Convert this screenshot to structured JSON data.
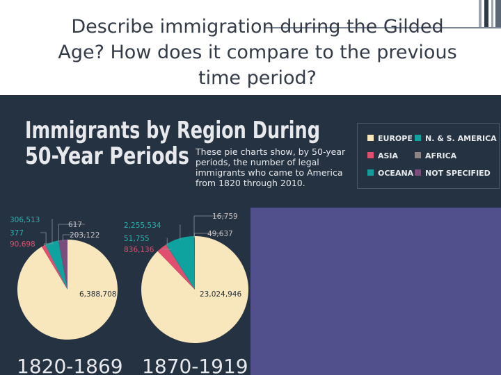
{
  "slide": {
    "title_line1": "Describe immigration during the Gilded",
    "title_line2": "Age? How does it compare to the previous",
    "title_line3": "time period?"
  },
  "colors": {
    "background": "#253241",
    "panel": "#51508c",
    "europe": "#f8e6bd",
    "asia": "#e0506e",
    "oceana": "#139c9a",
    "americas": "#0fa39f",
    "africa": "#8d8486",
    "not_specified": "#7b4d7a"
  },
  "chart_data": {
    "type": "pie",
    "title_line1": "Immigrants by Region During",
    "title_line2": "50-Year Periods",
    "subtitle": [
      "These pie charts show, by 50-year",
      "periods, the number of legal",
      "immigrants who came to America",
      "from 1820 through 2010."
    ],
    "legend": [
      {
        "name": "EUROPE",
        "color": "#f8e6bd"
      },
      {
        "name": "N. & S. AMERICA",
        "color": "#0fa39f"
      },
      {
        "name": "ASIA",
        "color": "#e0506e"
      },
      {
        "name": "AFRICA",
        "color": "#8d8486"
      },
      {
        "name": "OCEANA",
        "color": "#139c9a"
      },
      {
        "name": "NOT SPECIFIED",
        "color": "#7b4d7a"
      }
    ],
    "legend_position": "top-right",
    "pies": [
      {
        "period": "1820-1869",
        "slices": [
          {
            "region": "EUROPE",
            "value": 6388708,
            "label": "6,388,708"
          },
          {
            "region": "ASIA",
            "value": 90698,
            "label": "90,698"
          },
          {
            "region": "OCEANA",
            "value": 377,
            "label": "377"
          },
          {
            "region": "N. & S. AMERICA",
            "value": 306513,
            "label": "306,513"
          },
          {
            "region": "AFRICA",
            "value": 617,
            "label": "617"
          },
          {
            "region": "NOT SPECIFIED",
            "value": 203122,
            "label": "203,122"
          }
        ]
      },
      {
        "period": "1870-1919",
        "slices": [
          {
            "region": "EUROPE",
            "value": 23024946,
            "label": "23,024,946"
          },
          {
            "region": "ASIA",
            "value": 836136,
            "label": "836,136"
          },
          {
            "region": "OCEANA",
            "value": 51755,
            "label": "51,755"
          },
          {
            "region": "N. & S. AMERICA",
            "value": 2255534,
            "label": "2,255,534"
          },
          {
            "region": "AFRICA",
            "value": 16759,
            "label": "16,759"
          },
          {
            "region": "NOT SPECIFIED",
            "value": 49637,
            "label": "49,637"
          }
        ]
      }
    ]
  }
}
